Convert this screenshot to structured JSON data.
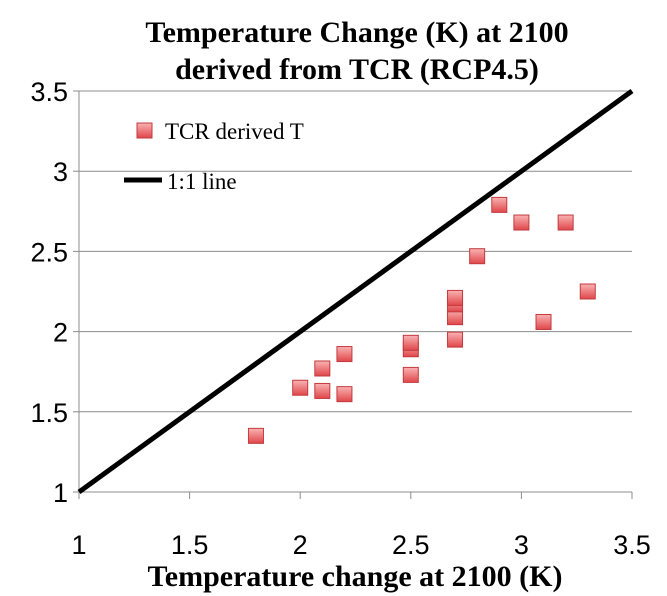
{
  "chart_data": {
    "type": "scatter",
    "title": [
      "Temperature Change (K) at 2100",
      "derived from TCR (RCP4.5)"
    ],
    "xlabel": "Temperature change  at 2100 (K)",
    "ylabel": "",
    "xlim": [
      1,
      3.5
    ],
    "ylim": [
      1,
      3.5
    ],
    "xticks": [
      "1",
      "1.5",
      "2",
      "2.5",
      "3",
      "3.5"
    ],
    "yticks": [
      "1",
      "1.5",
      "2",
      "2.5",
      "3",
      "3.5"
    ],
    "grid": "horizontal",
    "legend_position": "top-left",
    "series": [
      {
        "name": "TCR derived T",
        "marker": "square",
        "color": "#e8585c",
        "points": [
          [
            1.8,
            1.35
          ],
          [
            2.0,
            1.65
          ],
          [
            2.1,
            1.63
          ],
          [
            2.1,
            1.77
          ],
          [
            2.2,
            1.61
          ],
          [
            2.2,
            1.86
          ],
          [
            2.5,
            1.73
          ],
          [
            2.5,
            1.89
          ],
          [
            2.5,
            1.93
          ],
          [
            2.7,
            1.95
          ],
          [
            2.7,
            2.09
          ],
          [
            2.7,
            2.17
          ],
          [
            2.7,
            2.21
          ],
          [
            2.8,
            2.47
          ],
          [
            2.9,
            2.79
          ],
          [
            3.0,
            2.68
          ],
          [
            3.1,
            2.06
          ],
          [
            3.2,
            2.68
          ],
          [
            3.3,
            2.25
          ]
        ]
      },
      {
        "name": "1:1 line",
        "type": "line",
        "color": "#000000",
        "points": [
          [
            1,
            1
          ],
          [
            3.5,
            3.5
          ]
        ]
      }
    ]
  }
}
